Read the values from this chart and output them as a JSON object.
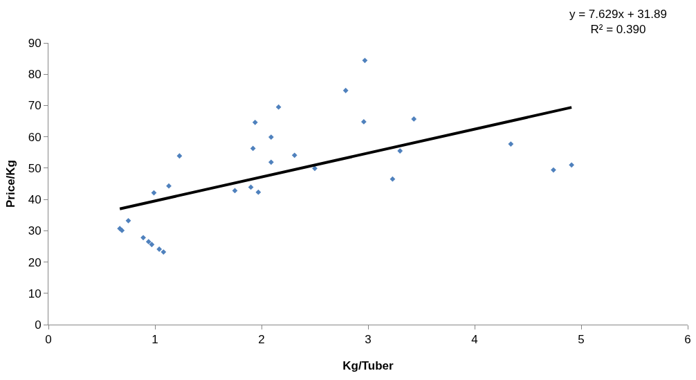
{
  "chart_data": {
    "type": "scatter",
    "xlabel": "Kg/Tuber",
    "ylabel": "Price/Kg",
    "xlim": [
      0,
      6
    ],
    "ylim": [
      0,
      90
    ],
    "xticks": [
      0,
      1,
      2,
      3,
      4,
      5,
      6
    ],
    "yticks": [
      0,
      10,
      20,
      30,
      40,
      50,
      60,
      70,
      80,
      90
    ],
    "annotations": [
      "y = 7.629x + 31.89\nR² = 0.390"
    ],
    "series": [
      {
        "marker": "diamond",
        "color": "#4f81bd",
        "x": [
          0.67,
          0.69,
          0.75,
          0.89,
          0.94,
          0.97,
          1.04,
          1.08,
          0.99,
          1.13,
          1.23,
          1.75,
          1.9,
          1.97,
          1.92,
          1.94,
          2.09,
          2.09,
          2.16,
          2.31,
          2.5,
          2.79,
          2.97,
          2.96,
          3.23,
          3.3,
          3.43,
          4.34,
          4.74,
          4.91
        ],
        "values": [
          30.7,
          30.1,
          33.2,
          27.8,
          26.5,
          25.6,
          24.1,
          23.2,
          42.1,
          44.3,
          53.9,
          42.8,
          43.9,
          42.3,
          56.3,
          64.6,
          59.9,
          51.9,
          69.5,
          54.1,
          49.9,
          74.8,
          84.4,
          64.8,
          46.5,
          55.5,
          65.7,
          57.7,
          49.4,
          51.0
        ]
      },
      {
        "type": "line",
        "marker": "none",
        "color": "#000000",
        "x": [
          0.67,
          4.91
        ],
        "values": [
          37.0,
          69.4
        ]
      }
    ]
  }
}
